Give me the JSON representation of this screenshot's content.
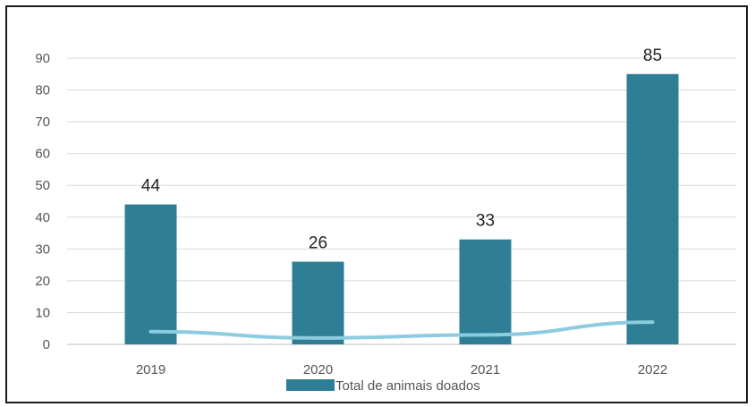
{
  "chart_data": {
    "type": "bar",
    "categories": [
      "2019",
      "2020",
      "2021",
      "2022"
    ],
    "series": [
      {
        "name": "Total de animais doados",
        "type": "bar",
        "values": [
          44,
          26,
          33,
          85
        ],
        "color": "#2e7f96"
      },
      {
        "type": "line",
        "values": [
          4,
          2,
          3,
          7
        ],
        "color": "#8ccbe0"
      }
    ],
    "data_labels": [
      "44",
      "26",
      "33",
      "85"
    ],
    "y_ticks": [
      "0",
      "10",
      "20",
      "30",
      "40",
      "50",
      "60",
      "70",
      "80",
      "90"
    ],
    "ylim": [
      0,
      90
    ],
    "grid": true,
    "legend": {
      "position": "bottom",
      "entries": [
        "Total de animais doados"
      ]
    },
    "title": "",
    "xlabel": "",
    "ylabel": ""
  },
  "colors": {
    "bar": "#2e7f96",
    "line": "#8ccbe0",
    "grid": "#d9d9d9",
    "axis": "#bfbfbf"
  }
}
